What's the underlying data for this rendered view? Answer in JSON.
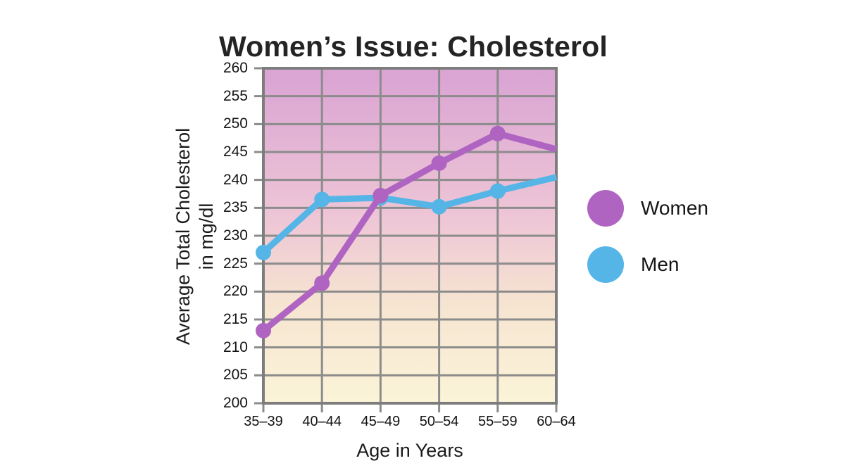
{
  "page_title": "Women’s Issue: Cholesterol",
  "chart_data": {
    "type": "line",
    "title": "Women’s Issue: Cholesterol",
    "categories": [
      "35–39",
      "40–44",
      "45–49",
      "50–54",
      "55–59",
      "60–64"
    ],
    "series": [
      {
        "name": "Women",
        "color": "#b064c2",
        "values": [
          213,
          221.5,
          237.2,
          243,
          248.3,
          245.5
        ],
        "marker_on_last_point": false
      },
      {
        "name": "Men",
        "color": "#55b5e6",
        "values": [
          227,
          236.5,
          236.8,
          235.2,
          238,
          240.5
        ],
        "marker_on_last_point": false
      }
    ],
    "xlabel": "Age in Years",
    "ylabel": "Average Total Cholesterol in mg/dl",
    "ylabel_lines": [
      "Average Total Cholesterol",
      "in mg/dl"
    ],
    "ylim": [
      200,
      260
    ],
    "ytick_step": 5,
    "grid": true,
    "gridline_color": "#8c8c8c",
    "axis_border_color": "#7d7d7d",
    "legend_position": "right",
    "plot_bg_gradient": [
      "#d9a3d3",
      "#eec6d6",
      "#f6e4d1",
      "#fbf4d8"
    ]
  },
  "legend": {
    "items": [
      {
        "label": "Women",
        "color": "#b064c2"
      },
      {
        "label": "Men",
        "color": "#55b5e6"
      }
    ]
  }
}
